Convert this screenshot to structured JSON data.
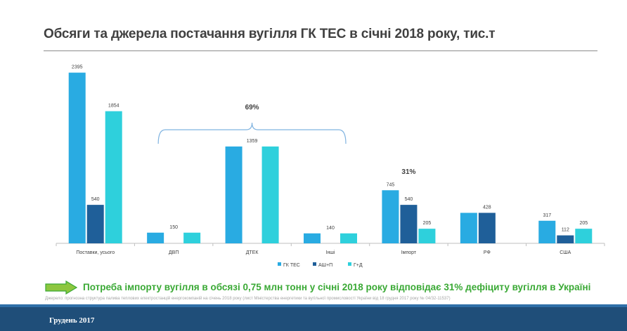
{
  "title": "Обсяги та джерела постачання вугілля ГК ТЕС в січні 2018 року, тис.т",
  "chart_data": {
    "type": "bar",
    "categories": [
      "Поставки, усього",
      "ДВП",
      "ДТЕК",
      "Інші",
      "Імпорт",
      "РФ",
      "США"
    ],
    "series": [
      {
        "name": "ГК ТЕС",
        "color": "#29abe2",
        "values": [
          2395,
          150,
          1359,
          140,
          745,
          428,
          317
        ]
      },
      {
        "name": "АШ+П",
        "color": "#1f5f99",
        "values": [
          540,
          0,
          0,
          0,
          540,
          428,
          112
        ]
      },
      {
        "name": "Г+Д",
        "color": "#2ed0dc",
        "values": [
          1854,
          150,
          1359,
          140,
          205,
          0,
          205
        ]
      }
    ],
    "data_labels": [
      {
        "category": 0,
        "series": 0,
        "text": "2395"
      },
      {
        "category": 0,
        "series": 1,
        "text": "540"
      },
      {
        "category": 0,
        "series": 2,
        "text": "1854"
      },
      {
        "category": 1,
        "series": 1,
        "text": "150"
      },
      {
        "category": 2,
        "series": 1,
        "text": "1359"
      },
      {
        "category": 3,
        "series": 1,
        "text": "140"
      },
      {
        "category": 4,
        "series": 0,
        "text": "745"
      },
      {
        "category": 4,
        "series": 1,
        "text": "540"
      },
      {
        "category": 4,
        "series": 2,
        "text": "205"
      },
      {
        "category": 5,
        "series": 1,
        "text": "428"
      },
      {
        "category": 6,
        "series": 0,
        "text": "317"
      },
      {
        "category": 6,
        "series": 1,
        "text": "112"
      },
      {
        "category": 6,
        "series": 2,
        "text": "205"
      }
    ],
    "annotations": [
      {
        "text": "69%",
        "over_categories": [
          1,
          3
        ]
      },
      {
        "text": "31%",
        "over_categories": [
          4,
          4
        ]
      }
    ],
    "ylim": [
      0,
      2450
    ],
    "grid": false,
    "legend_position": "bottom"
  },
  "note": "Потреба імпорту вугілля в обсязі 0,75 млн тонн у січні 2018 року відповідає 31% дефіциту вугілля в Україні",
  "source": "Джерело: прогнозна структура палива теплових електростанцій енергокомпаній на січень 2018 року (лист Міністерства енергетики та вугільної промисловості України від 18 грудня 2017 року № 04/32-11537)",
  "footer": {
    "date": "Грудень 2017"
  },
  "colors": {
    "footer_bar": "#1f4e79",
    "note_green": "#3aa935"
  }
}
